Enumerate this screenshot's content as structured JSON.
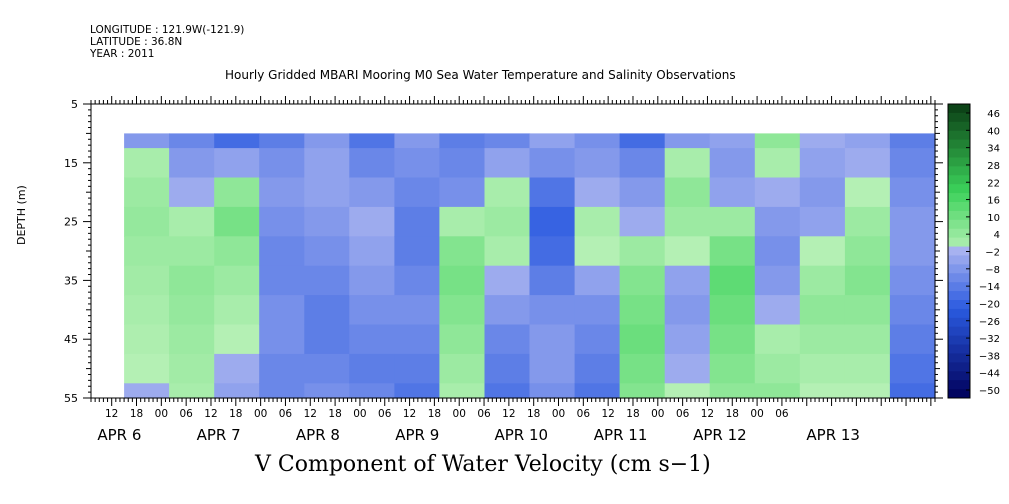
{
  "header": {
    "longitude": "LONGITUDE : 121.9W(-121.9)",
    "latitude": "LATITUDE : 36.8N",
    "year": "YEAR : 2011"
  },
  "colors": {
    "negative_low": "#00005a",
    "negative_mid": "#2a5ae0",
    "negative_near_zero": "#aab4f0",
    "positive_near_zero": "#b4f0b4",
    "positive_mid": "#3cd25a",
    "positive_high": "#0a3c14",
    "frame": "#000000"
  },
  "chart_data": {
    "type": "heatmap",
    "title": "Hourly Gridded MBARI Mooring M0 Sea Water Temperature and Salinity Observations",
    "subtitle": "V Component of Water Velocity (cm s−1)",
    "xlabel": "",
    "ylabel": "DEPTH (m)",
    "x_start": "2011-04-05T07:00",
    "x_end": "2011-04-13T19:00",
    "data_start": "2011-04-05T15:00",
    "ylim": [
      55,
      5
    ],
    "yticks": [
      5,
      15,
      25,
      35,
      45,
      55
    ],
    "hour_ticks": [
      "12",
      "18",
      "00",
      "06",
      "12",
      "18",
      "00",
      "06",
      "12",
      "18",
      "00",
      "06",
      "12",
      "18",
      "00",
      "06",
      "12",
      "18",
      "00",
      "06",
      "12",
      "18",
      "00",
      "06",
      "12",
      "18",
      "00",
      "06"
    ],
    "day_labels": [
      "APR  6",
      "APR  7",
      "APR  8",
      "APR  9",
      "APR 10",
      "APR 11",
      "APR 12",
      "APR 13"
    ],
    "depths": [
      10,
      15,
      20,
      25,
      30,
      35,
      40,
      45,
      50,
      55
    ],
    "colorbar_ticks": [
      "46",
      "40",
      "34",
      "28",
      "22",
      "16",
      "10",
      "4",
      "−2",
      "−8",
      "−14",
      "−20",
      "−26",
      "−32",
      "−38",
      "−44",
      "−50"
    ],
    "colorbar_range": [
      -50,
      49
    ],
    "v_columns_approx": [
      [
        -6,
        2,
        4,
        5,
        4,
        3,
        2,
        1,
        0,
        -2
      ],
      [
        -10,
        -6,
        -2,
        2,
        4,
        6,
        5,
        4,
        3,
        2
      ],
      [
        -16,
        -4,
        6,
        10,
        6,
        4,
        2,
        0,
        -2,
        -4
      ],
      [
        -12,
        -8,
        -6,
        -8,
        -10,
        -10,
        -8,
        -8,
        -10,
        -10
      ],
      [
        -6,
        -4,
        -4,
        -6,
        -8,
        -10,
        -12,
        -12,
        -10,
        -8
      ],
      [
        -14,
        -10,
        -6,
        -2,
        -4,
        -6,
        -8,
        -10,
        -12,
        -10
      ],
      [
        -6,
        -8,
        -10,
        -12,
        -12,
        -10,
        -8,
        -10,
        -12,
        -14
      ],
      [
        -12,
        -10,
        -8,
        2,
        8,
        10,
        8,
        6,
        4,
        2
      ],
      [
        -10,
        -4,
        2,
        4,
        2,
        -2,
        -6,
        -10,
        -12,
        -14
      ],
      [
        -4,
        -8,
        -14,
        -18,
        -16,
        -12,
        -8,
        -6,
        -6,
        -8
      ],
      [
        -8,
        -6,
        -2,
        2,
        0,
        -4,
        -8,
        -10,
        -12,
        -14
      ],
      [
        -16,
        -10,
        -6,
        -2,
        4,
        8,
        10,
        12,
        10,
        8
      ],
      [
        -6,
        2,
        6,
        4,
        0,
        -4,
        -6,
        -4,
        -2,
        0
      ],
      [
        -4,
        -6,
        -4,
        4,
        10,
        14,
        12,
        10,
        8,
        6
      ],
      [
        6,
        2,
        -2,
        -6,
        -8,
        -6,
        -2,
        2,
        4,
        6
      ],
      [
        -2,
        -4,
        -6,
        -4,
        0,
        4,
        6,
        4,
        2,
        0
      ],
      [
        -4,
        -2,
        0,
        4,
        6,
        8,
        6,
        4,
        2,
        0
      ],
      [
        -12,
        -10,
        -8,
        -6,
        -6,
        -8,
        -10,
        -12,
        -14,
        -16
      ]
    ]
  }
}
